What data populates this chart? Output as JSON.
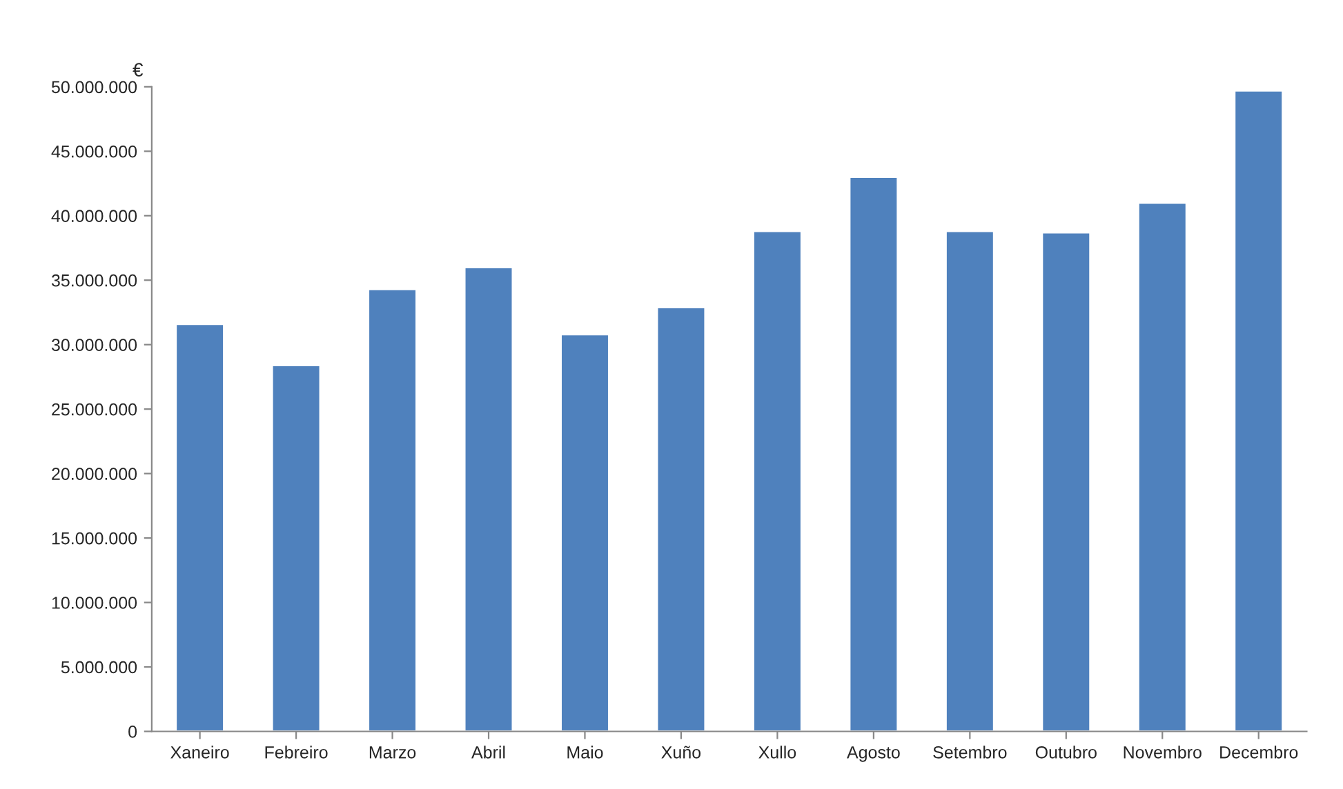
{
  "chart_data": {
    "type": "bar",
    "ylabel": "€",
    "categories": [
      "Xaneiro",
      "Febreiro",
      "Marzo",
      "Abril",
      "Maio",
      "Xuño",
      "Xullo",
      "Agosto",
      "Setembro",
      "Outubro",
      "Novembro",
      "Decembro"
    ],
    "values": [
      31600000,
      28400000,
      34300000,
      36000000,
      30800000,
      32900000,
      38800000,
      43000000,
      38800000,
      38700000,
      41000000,
      49700000
    ],
    "color": "#4f81bd",
    "ylim": [
      0,
      50000000
    ],
    "yticks": [
      0,
      {
        "value": 5000000,
        "label": "5.000.000"
      },
      {
        "value": 10000000,
        "label": "10.000.000"
      },
      {
        "value": 15000000,
        "label": "15.000.000"
      },
      {
        "value": 20000000,
        "label": "20.000.000"
      },
      {
        "value": 25000000,
        "label": "25.000.000"
      },
      {
        "value": 30000000,
        "label": "30.000.000"
      },
      {
        "value": 35000000,
        "label": "35.000.000"
      },
      {
        "value": 40000000,
        "label": "40.000.000"
      },
      {
        "value": 45000000,
        "label": "45.000.000"
      },
      {
        "value": 50000000,
        "label": "50.000.000"
      }
    ],
    "grid": false,
    "legend": false
  }
}
